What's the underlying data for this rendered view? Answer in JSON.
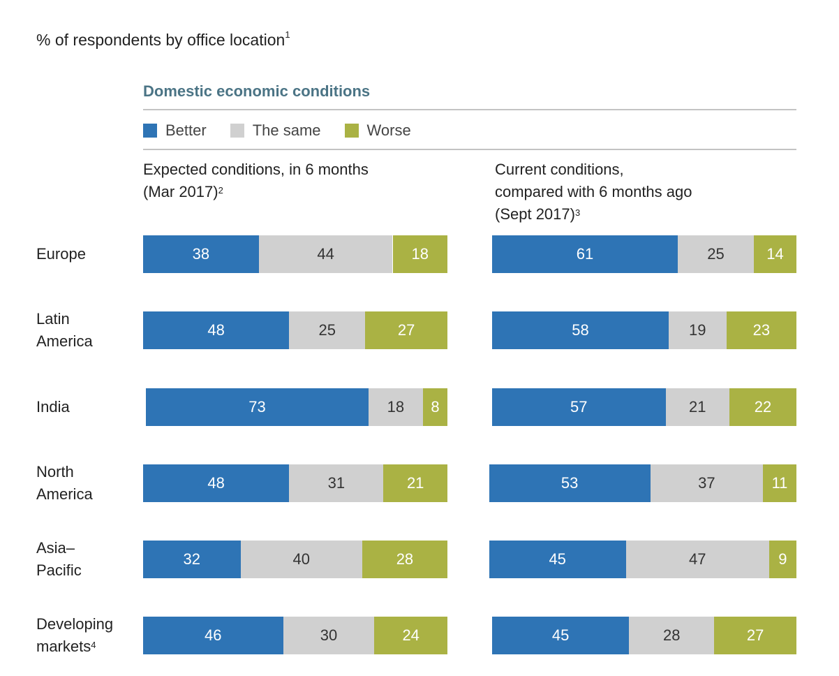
{
  "chart_data": {
    "type": "bar",
    "orientation": "horizontal-stacked",
    "subtitle": "% of respondents by office location",
    "subtitle_footnote": "1",
    "title": "Domestic economic conditions",
    "colors": {
      "better": "#2e74b5",
      "same": "#d0d0d0",
      "worse": "#aab244",
      "title": "#4b7485"
    },
    "legend": [
      {
        "key": "better",
        "label": "Better"
      },
      {
        "key": "same",
        "label": "The same"
      },
      {
        "key": "worse",
        "label": "Worse"
      }
    ],
    "legend_position": "top",
    "categories": [
      "Europe",
      "Latin America",
      "India",
      "North America",
      "Asia–Pacific",
      "Developing markets"
    ],
    "category_labels": [
      {
        "lines": [
          "Europe"
        ],
        "footnote": ""
      },
      {
        "lines": [
          "Latin",
          "America"
        ],
        "footnote": ""
      },
      {
        "lines": [
          "India"
        ],
        "footnote": ""
      },
      {
        "lines": [
          "North",
          "America"
        ],
        "footnote": ""
      },
      {
        "lines": [
          "Asia–",
          "Pacific"
        ],
        "footnote": ""
      },
      {
        "lines": [
          "Developing",
          "markets"
        ],
        "footnote": "4"
      }
    ],
    "panels": [
      {
        "heading_lines": [
          "Expected conditions, in 6 months",
          "(Mar 2017)"
        ],
        "heading_footnote": "2",
        "series": [
          {
            "name": "Better",
            "values": [
              38,
              48,
              73,
              48,
              32,
              46
            ]
          },
          {
            "name": "The same",
            "values": [
              44,
              25,
              18,
              31,
              40,
              30
            ]
          },
          {
            "name": "Worse",
            "values": [
              18,
              27,
              8,
              21,
              28,
              24
            ]
          }
        ]
      },
      {
        "heading_lines": [
          "Current conditions,",
          "compared with 6 months ago",
          "(Sept 2017)"
        ],
        "heading_footnote": "3",
        "series": [
          {
            "name": "Better",
            "values": [
              61,
              58,
              57,
              53,
              45,
              45
            ]
          },
          {
            "name": "The same",
            "values": [
              25,
              19,
              21,
              37,
              47,
              28
            ]
          },
          {
            "name": "Worse",
            "values": [
              14,
              23,
              22,
              11,
              9,
              27
            ]
          }
        ]
      }
    ],
    "xlim": [
      0,
      100
    ],
    "grid": false
  }
}
